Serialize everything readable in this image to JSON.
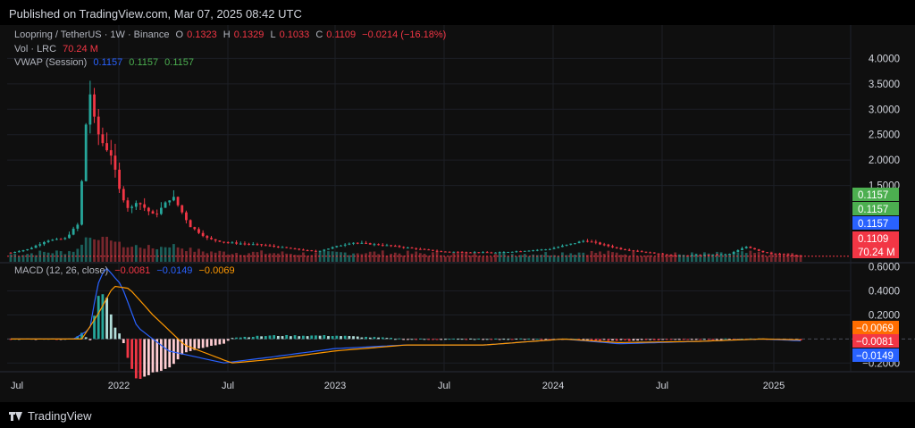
{
  "header": {
    "published": "Published on TradingView.com, Mar 07, 2025 08:42 UTC"
  },
  "legend": {
    "symbol": "Loopring / TetherUS · 1W · Binance",
    "open_label": "O",
    "open": "0.1323",
    "high_label": "H",
    "high": "0.1329",
    "low_label": "L",
    "low": "0.1033",
    "close_label": "C",
    "close": "0.1109",
    "change": "−0.0214 (−16.18%)",
    "vol_label": "Vol · LRC",
    "vol": "70.24 M",
    "vwap_label": "VWAP (Session)",
    "vwap_1": "0.1157",
    "vwap_2": "0.1157",
    "vwap_3": "0.1157"
  },
  "macd_legend": {
    "label": "MACD (12, 26, close)",
    "hist": "−0.0081",
    "macd": "−0.0149",
    "signal": "−0.0069"
  },
  "footer": {
    "brand": "TradingView"
  },
  "colors": {
    "up": "#26a69a",
    "down": "#f23645",
    "macd": "#2962ff",
    "signal": "#ff9800",
    "hist_up": "#b2dfdb",
    "hist_down": "#ffcdd2",
    "vwap_badge": "#4caf50"
  },
  "chart_data": [
    {
      "type": "candlestick",
      "title": "Loopring / TetherUS · 1W · Binance",
      "x_ticks": [
        "Jul",
        "2022",
        "Jul",
        "2023",
        "Jul",
        "2024",
        "Jul",
        "2025"
      ],
      "y_ticks": [
        "4.0000",
        "3.5000",
        "3.0000",
        "2.5000",
        "2.0000",
        "1.5000"
      ],
      "ylim": [
        0,
        4.2
      ],
      "price_badges": [
        {
          "value": "0.1157",
          "color": "#4caf50"
        },
        {
          "value": "0.1157",
          "color": "#4caf50"
        },
        {
          "value": "0.1157",
          "color": "#2962ff"
        },
        {
          "value": "0.1109",
          "color": "#f23645"
        },
        {
          "value": "70.24 M",
          "color": "#f23645"
        }
      ],
      "price_line": 0.1109,
      "series": [
        {
          "t": "2021-07",
          "close": 0.18
        },
        {
          "t": "2021-08",
          "close": 0.25
        },
        {
          "t": "2021-09",
          "close": 0.42
        },
        {
          "t": "2021-10",
          "close": 0.45
        },
        {
          "t": "2021-10-25",
          "close": 0.75
        },
        {
          "t": "2021-11-08",
          "close": 2.9
        },
        {
          "t": "2021-11-10",
          "close": 3.6
        },
        {
          "t": "2021-11-22",
          "close": 2.7
        },
        {
          "t": "2021-12",
          "close": 2.4
        },
        {
          "t": "2021-12-20",
          "close": 2.1
        },
        {
          "t": "2022-01",
          "close": 1.45
        },
        {
          "t": "2022-01-20",
          "close": 1.0
        },
        {
          "t": "2022-02",
          "close": 1.2
        },
        {
          "t": "2022-03",
          "close": 0.9
        },
        {
          "t": "2022-04",
          "close": 1.3
        },
        {
          "t": "2022-05",
          "close": 0.7
        },
        {
          "t": "2022-06",
          "close": 0.45
        },
        {
          "t": "2022-07",
          "close": 0.38
        },
        {
          "t": "2022-09",
          "close": 0.33
        },
        {
          "t": "2022-12",
          "close": 0.2
        },
        {
          "t": "2023-02",
          "close": 0.38
        },
        {
          "t": "2023-04",
          "close": 0.32
        },
        {
          "t": "2023-07",
          "close": 0.2
        },
        {
          "t": "2023-10",
          "close": 0.18
        },
        {
          "t": "2024-01",
          "close": 0.25
        },
        {
          "t": "2024-03",
          "close": 0.42
        },
        {
          "t": "2024-05",
          "close": 0.25
        },
        {
          "t": "2024-08",
          "close": 0.12
        },
        {
          "t": "2024-11",
          "close": 0.15
        },
        {
          "t": "2024-12",
          "close": 0.3
        },
        {
          "t": "2025-01",
          "close": 0.18
        },
        {
          "t": "2025-03",
          "close": 0.1109
        }
      ]
    },
    {
      "type": "bar",
      "title": "MACD (12, 26, close)",
      "y_ticks": [
        "0.6000",
        "0.4000",
        "0.2000",
        "−0.2000"
      ],
      "ylim": [
        -0.25,
        0.62
      ],
      "price_badges": [
        {
          "value": "−0.0069",
          "color": "#ff6d00"
        },
        {
          "value": "−0.0081",
          "color": "#f23645"
        },
        {
          "value": "−0.0149",
          "color": "#2962ff"
        }
      ],
      "series": [
        {
          "name": "MACD",
          "points": [
            [
              0,
              0
            ],
            [
              0.08,
              0
            ],
            [
              0.1,
              0.08
            ],
            [
              0.11,
              0.45
            ],
            [
              0.12,
              0.6
            ],
            [
              0.14,
              0.45
            ],
            [
              0.16,
              0.1
            ],
            [
              0.2,
              -0.1
            ],
            [
              0.27,
              -0.2
            ],
            [
              0.33,
              -0.15
            ],
            [
              0.41,
              -0.08
            ],
            [
              0.5,
              -0.05
            ],
            [
              0.6,
              -0.05
            ],
            [
              0.7,
              0.0
            ],
            [
              0.77,
              -0.04
            ],
            [
              0.87,
              -0.02
            ],
            [
              0.95,
              0.0
            ],
            [
              1.0,
              -0.0149
            ]
          ]
        },
        {
          "name": "Signal",
          "points": [
            [
              0,
              0
            ],
            [
              0.09,
              0
            ],
            [
              0.11,
              0.2
            ],
            [
              0.13,
              0.44
            ],
            [
              0.15,
              0.42
            ],
            [
              0.18,
              0.2
            ],
            [
              0.22,
              -0.05
            ],
            [
              0.28,
              -0.2
            ],
            [
              0.33,
              -0.17
            ],
            [
              0.41,
              -0.1
            ],
            [
              0.5,
              -0.05
            ],
            [
              0.6,
              -0.05
            ],
            [
              0.7,
              0.0
            ],
            [
              0.77,
              -0.03
            ],
            [
              0.87,
              -0.02
            ],
            [
              0.95,
              0.0
            ],
            [
              1.0,
              -0.0069
            ]
          ]
        }
      ]
    }
  ]
}
